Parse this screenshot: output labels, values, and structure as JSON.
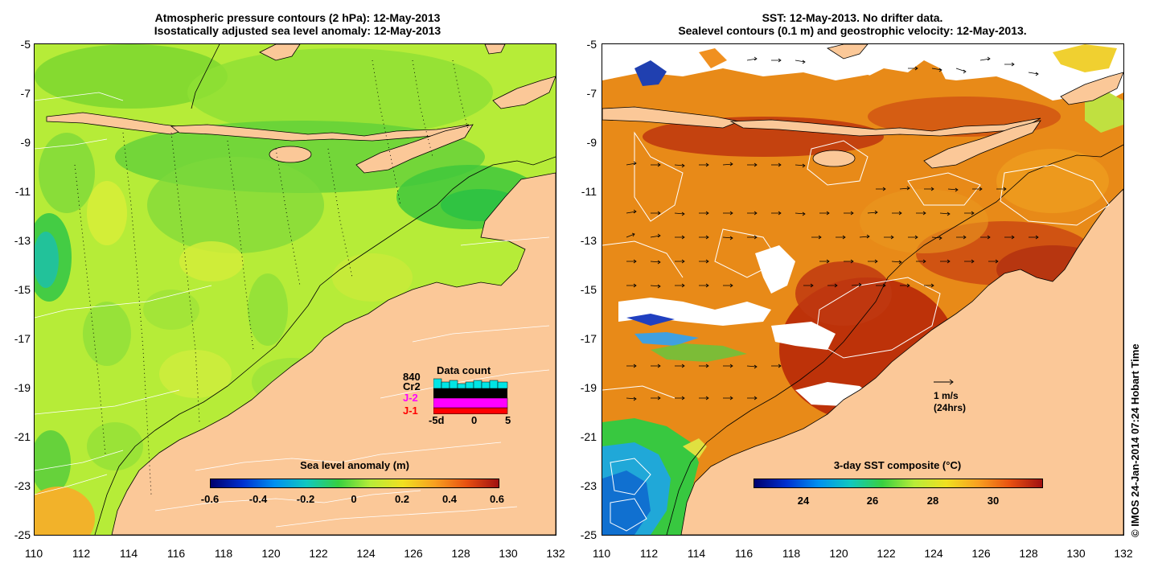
{
  "left_panel": {
    "title_line1": "Atmospheric pressure contours (2 hPa): 12-May-2013",
    "title_line2": "Isostatically adjusted sea level anomaly: 12-May-2013",
    "colorbar": {
      "title": "Sea level anomaly (m)",
      "ticks": [
        "-0.6",
        "-0.4",
        "-0.2",
        "0",
        "0.2",
        "0.4",
        "0.6"
      ],
      "min": -0.6,
      "max": 0.6
    },
    "data_count": {
      "title": "Data count",
      "labels": [
        "840",
        "Cr2",
        "J-2",
        "J-1"
      ],
      "label_colors": [
        "#000000",
        "#000000",
        "#ff00ff",
        "#ff0000"
      ],
      "axis_ticks": [
        "-5d",
        "0",
        "5"
      ]
    }
  },
  "right_panel": {
    "title_line1": "SST: 12-May-2013. No drifter data.",
    "title_line2": "Sealevel contours (0.1 m) and geostrophic velocity: 12-May-2013.",
    "colorbar": {
      "title": "3-day SST composite (°C)",
      "ticks": [
        "24",
        "26",
        "28",
        "30"
      ],
      "min": 22.3,
      "max": 31.8
    },
    "velocity_scale": {
      "line1": "1 m/s",
      "line2": "(24hrs)"
    }
  },
  "axes": {
    "lon_ticks": [
      "110",
      "112",
      "114",
      "116",
      "118",
      "120",
      "122",
      "124",
      "126",
      "128",
      "130",
      "132"
    ],
    "lat_ticks": [
      "-5",
      "-7",
      "-9",
      "-11",
      "-13",
      "-15",
      "-17",
      "-19",
      "-21",
      "-23",
      "-25"
    ],
    "lon_range": [
      110,
      132
    ],
    "lat_range": [
      -25,
      -5
    ]
  },
  "credit": "© IMOS 24-Jan-2014 07:24 Hobart Time",
  "colors": {
    "land": "#fbc898",
    "sla_bg": "#b6ec38",
    "sst_bg": "#e88a18"
  }
}
